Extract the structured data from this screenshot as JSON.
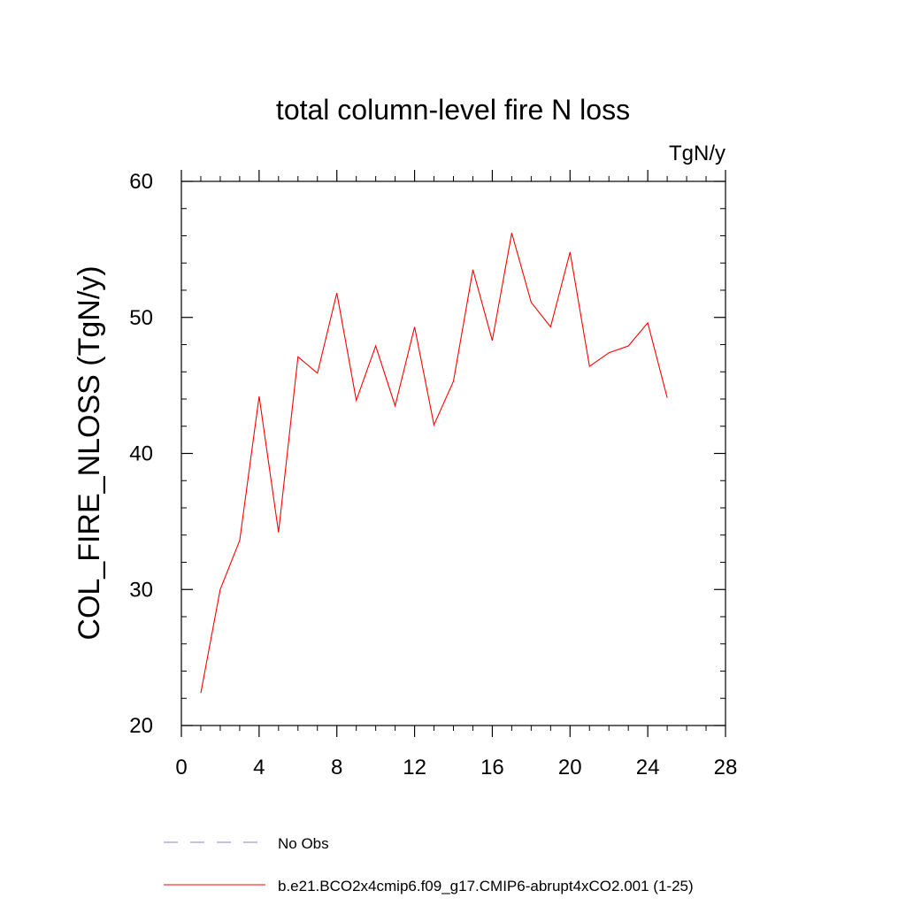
{
  "chart_data": {
    "type": "line",
    "title": "total column-level fire N loss",
    "units_label": "TgN/y",
    "xlabel": "",
    "ylabel": "COL_FIRE_NLOSS  (TgN/y)",
    "xlim": [
      0,
      28
    ],
    "ylim": [
      20,
      60
    ],
    "x_ticks": [
      0,
      4,
      8,
      12,
      16,
      20,
      24,
      28
    ],
    "x_tick_labels": [
      "0",
      "4",
      "8",
      "12",
      "16",
      "20",
      "24",
      "28"
    ],
    "y_ticks": [
      20,
      30,
      40,
      50,
      60
    ],
    "y_tick_labels": [
      "20",
      "30",
      "40",
      "50",
      "60"
    ],
    "grid": false,
    "legend_position": "bottom",
    "series": [
      {
        "name": "b.e21.BCO2x4cmip6.f09_g17.CMIP6-abrupt4xCO2.001 (1-25)",
        "color": "#ff0000",
        "style": "solid",
        "x": [
          1,
          2,
          3,
          4,
          5,
          6,
          7,
          8,
          9,
          10,
          11,
          12,
          13,
          14,
          15,
          16,
          17,
          18,
          19,
          20,
          21,
          22,
          23,
          24,
          25
        ],
        "values": [
          22.4,
          30.0,
          33.6,
          44.2,
          34.2,
          47.1,
          45.9,
          51.8,
          43.9,
          47.9,
          43.5,
          49.3,
          42.1,
          45.3,
          53.5,
          48.3,
          56.2,
          51.1,
          49.3,
          54.8,
          46.4,
          47.4,
          47.9,
          49.6,
          44.1
        ]
      }
    ],
    "legend": [
      {
        "label": "No Obs",
        "color": "#8a7fc8",
        "style": "dashed"
      },
      {
        "label": "b.e21.BCO2x4cmip6.f09_g17.CMIP6-abrupt4xCO2.001 (1-25)",
        "color": "#ff0000",
        "style": "solid"
      }
    ]
  }
}
